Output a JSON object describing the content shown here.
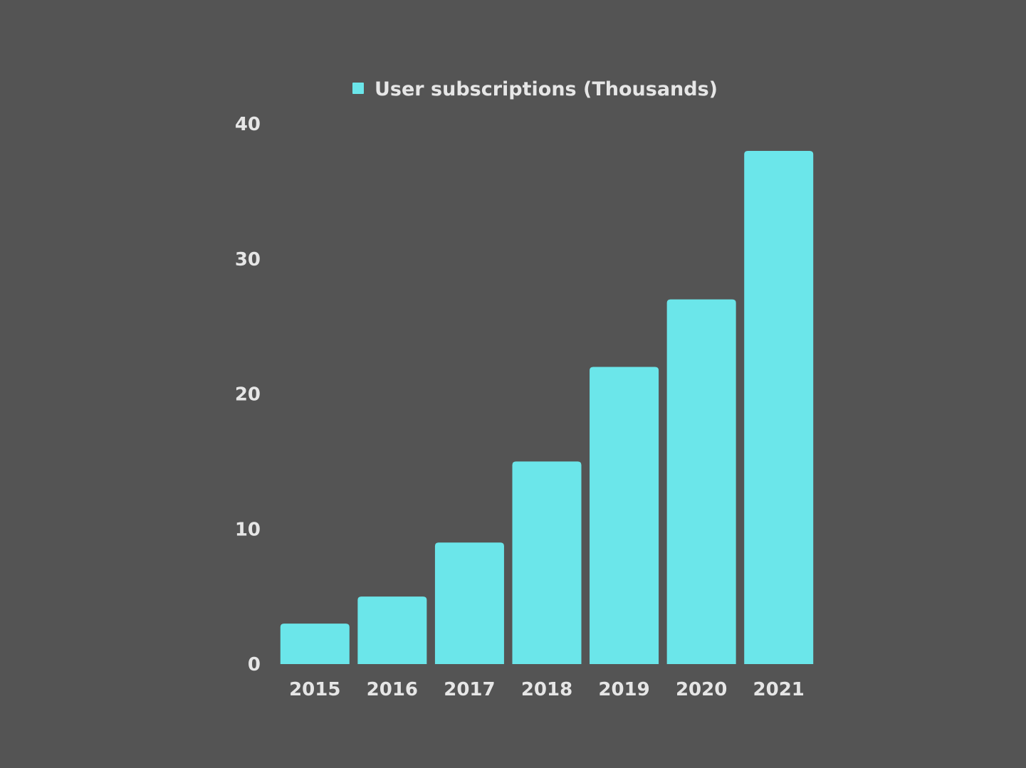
{
  "chart_data": {
    "type": "bar",
    "categories": [
      "2015",
      "2016",
      "2017",
      "2018",
      "2019",
      "2020",
      "2021"
    ],
    "series": [
      {
        "name": "User subscriptions (Thousands)",
        "values": [
          3,
          5,
          9,
          15,
          22,
          27,
          38
        ],
        "color": "#6be6ea"
      }
    ],
    "ylim": [
      0,
      40
    ],
    "yticks": [
      0,
      10,
      20,
      30,
      40
    ],
    "grid": false,
    "legend_position": "top-center"
  }
}
